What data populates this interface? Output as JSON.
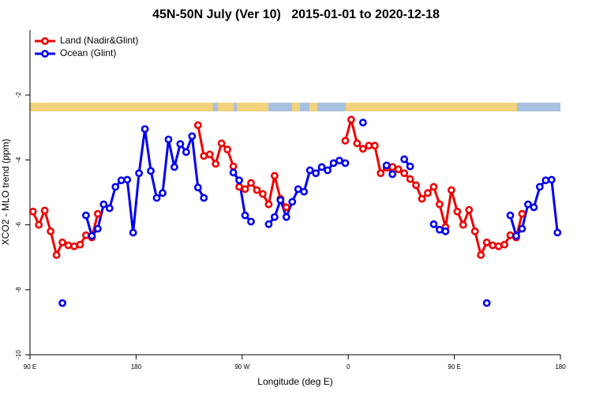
{
  "chart_data": {
    "type": "line",
    "title": "45N-50N July (Ver 10)   2015-01-01 to 2020-12-18",
    "x_label": "Longitude (deg E)",
    "y_label": "XCO2 - MLO trend (ppm)",
    "x": [
      -267.5,
      -262.5,
      -257.5,
      -252.5,
      -247.5,
      -242.5,
      -237.5,
      -232.5,
      -227.5,
      -222.5,
      -217.5,
      -212.5,
      -207.5,
      -202.5,
      -197.5,
      -192.5,
      -187.5,
      -182.5,
      -177.5,
      -172.5,
      -167.5,
      -162.5,
      -157.5,
      -152.5,
      -147.5,
      -142.5,
      -137.5,
      -132.5,
      -127.5,
      -122.5,
      -117.5,
      -112.5,
      -107.5,
      -102.5,
      -97.5,
      -92.5,
      -87.5,
      -82.5,
      -77.5,
      -72.5,
      -67.5,
      -62.5,
      -57.5,
      -52.5,
      -47.5,
      -42.5,
      -37.5,
      -32.5,
      -27.5,
      -22.5,
      -17.5,
      -12.5,
      -7.5,
      -2.5,
      2.5,
      7.5,
      12.5,
      17.5,
      22.5,
      27.5,
      32.5,
      37.5,
      42.5,
      47.5,
      52.5,
      57.5,
      62.5,
      67.5,
      72.5,
      77.5,
      82.5,
      87.5,
      92.5,
      97.5,
      102.5,
      107.5,
      112.5,
      117.5,
      122.5,
      127.5,
      132.5,
      137.5,
      142.5,
      147.5,
      152.5,
      157.5,
      162.5,
      167.5,
      172.5,
      177.5
    ],
    "series": [
      {
        "name": "Land (Nadir&Glint)",
        "color": "#ee0000",
        "values": [
          -5.59,
          -6.0,
          -5.56,
          -6.2,
          -6.93,
          -6.54,
          -6.63,
          -6.66,
          -6.61,
          -6.32,
          -6.39,
          -5.66,
          null,
          null,
          null,
          null,
          null,
          null,
          null,
          null,
          null,
          null,
          null,
          null,
          null,
          null,
          null,
          null,
          -2.93,
          -3.88,
          -3.83,
          -4.12,
          -3.49,
          -3.68,
          -4.2,
          -4.83,
          -4.9,
          -4.71,
          -4.93,
          -5.05,
          -5.37,
          -4.49,
          -5.2,
          -5.46,
          null,
          null,
          null,
          null,
          null,
          null,
          null,
          null,
          null,
          -3.41,
          -2.76,
          -3.49,
          -3.66,
          -3.56,
          -3.56,
          -4.41,
          -4.24,
          -4.22,
          -4.29,
          -4.41,
          -4.59,
          -4.78,
          -5.2,
          -5.02,
          -4.83,
          -5.37,
          -6.07,
          -4.93,
          -5.59,
          -6.0,
          -5.54,
          -6.2,
          -6.93,
          -6.54,
          -6.63,
          -6.66,
          -6.61,
          -6.32,
          -6.39,
          -5.66,
          null,
          null,
          null,
          null,
          null,
          null
        ]
      },
      {
        "name": "Ocean (Glint)",
        "color": "#0000ee",
        "values": [
          null,
          null,
          null,
          null,
          null,
          -8.41,
          null,
          null,
          null,
          -5.71,
          -6.34,
          -6.12,
          -5.37,
          -5.49,
          -4.83,
          -4.63,
          -4.61,
          -6.24,
          -4.41,
          -3.05,
          -4.34,
          -5.17,
          -5.02,
          -3.37,
          -4.22,
          -3.51,
          -3.76,
          -3.27,
          -4.85,
          -5.17,
          null,
          null,
          null,
          null,
          -4.39,
          -4.63,
          -5.71,
          -5.9,
          null,
          null,
          -5.98,
          -5.76,
          -5.24,
          -5.76,
          -5.29,
          -4.9,
          -4.98,
          -4.32,
          -4.41,
          -4.22,
          -4.32,
          -4.1,
          -4.02,
          -4.1,
          null,
          null,
          -2.85,
          null,
          null,
          null,
          -4.17,
          -4.44,
          null,
          -3.98,
          -4.2,
          null,
          null,
          null,
          -5.98,
          -6.15,
          -6.2,
          null,
          null,
          null,
          null,
          null,
          null,
          -8.41,
          null,
          null,
          null,
          -5.71,
          -6.34,
          -6.12,
          -5.37,
          -5.46,
          -4.83,
          -4.63,
          -4.61,
          -6.24
        ]
      }
    ],
    "xlim": [
      -270,
      180
    ],
    "xticks": [
      {
        "value": -270,
        "label": "90 E"
      },
      {
        "value": -180,
        "label": "180"
      },
      {
        "value": -90,
        "label": "90 W"
      },
      0,
      {
        "value": 90,
        "label": "90 E"
      },
      {
        "value": 180,
        "label": "180"
      }
    ],
    "ylim": [
      -10,
      0
    ],
    "yticks": [
      -2,
      -4,
      -6,
      -8,
      -10
    ],
    "legend": "top-left"
  }
}
